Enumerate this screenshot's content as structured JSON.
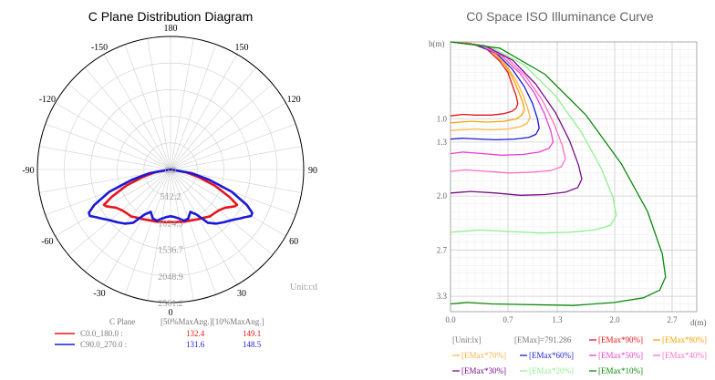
{
  "chart_data": [
    {
      "type": "polar",
      "title": "C Plane Distribution Diagram",
      "angle_labels": [
        "180",
        "150",
        "120",
        "90",
        "60",
        "30",
        "0",
        "-30",
        "-60",
        "-90",
        "-120",
        "-150"
      ],
      "angle_ticks": [
        180,
        150,
        120,
        90,
        60,
        30,
        0,
        -30,
        -60,
        -90,
        -120,
        -150
      ],
      "radial_labels": [
        "0.0",
        "512.2",
        "1024.5",
        "1536.7",
        "2048.9",
        "2561.2"
      ],
      "radial_values": [
        0,
        512.2,
        1024.5,
        1536.7,
        2048.9,
        2561.2
      ],
      "rmax": 2561.2,
      "unit_label": "Unit:cd",
      "legend": {
        "header_plane": "C Plane",
        "header_angles": "[50%MaxAng.][10%MaxAng.]",
        "rows": [
          {
            "name": "C0.0_180.0 :",
            "a50": "132.4",
            "a10": "149.1",
            "color": "#e8141b"
          },
          {
            "name": "C90.0_270.0 :",
            "a50": "131.6",
            "a10": "148.5",
            "color": "#1a1ad6"
          }
        ]
      },
      "series": [
        {
          "name": "C0.0_180.0",
          "color": "#e8141b",
          "angles": [
            -180,
            -150,
            -120,
            -100,
            -90,
            -80,
            -75,
            -70,
            -65,
            -62,
            -60,
            -55,
            -50,
            -45,
            -40,
            -35,
            -30,
            -25,
            -20,
            -15,
            -10,
            -5,
            0,
            5,
            10,
            15,
            20,
            25,
            30,
            35,
            40,
            45,
            50,
            55,
            60,
            62,
            65,
            70,
            75,
            80,
            90,
            100,
            120,
            150,
            180
          ],
          "values": [
            0,
            0,
            0,
            5,
            10,
            300,
            550,
            900,
            1250,
            1450,
            1420,
            1280,
            1220,
            1190,
            1180,
            1130,
            1100,
            1070,
            1050,
            1040,
            1020,
            1020,
            1010,
            1020,
            1020,
            1040,
            1050,
            1070,
            1100,
            1130,
            1180,
            1190,
            1220,
            1280,
            1420,
            1450,
            1250,
            900,
            550,
            300,
            10,
            5,
            0,
            0,
            0
          ]
        },
        {
          "name": "C90.0_270.0",
          "color": "#1a1ad6",
          "angles": [
            -180,
            -150,
            -120,
            -100,
            -90,
            -80,
            -75,
            -70,
            -65,
            -62,
            -60,
            -57,
            -55,
            -50,
            -45,
            -40,
            -35,
            -30,
            -25,
            -20,
            -15,
            -10,
            -5,
            0,
            5,
            10,
            15,
            20,
            25,
            30,
            35,
            40,
            45,
            50,
            55,
            57,
            60,
            62,
            65,
            70,
            75,
            80,
            90,
            100,
            120,
            150,
            180
          ],
          "values": [
            0,
            0,
            0,
            5,
            10,
            420,
            780,
            1250,
            1620,
            1780,
            1790,
            1690,
            1640,
            1520,
            1440,
            1360,
            1250,
            1000,
            900,
            1000,
            1020,
            960,
            920,
            900,
            920,
            960,
            1020,
            1000,
            900,
            1000,
            1250,
            1360,
            1440,
            1520,
            1640,
            1690,
            1790,
            1780,
            1620,
            1250,
            780,
            420,
            10,
            5,
            0,
            0,
            0
          ]
        }
      ]
    },
    {
      "type": "line",
      "title": "C0 Space ISO Illuminance Curve",
      "ylabel": "h(m)",
      "xlabel": "d(m)",
      "x_ticks": [
        "0.0",
        "0.7",
        "1.3",
        "2.0",
        "2.7"
      ],
      "x_tick_values": [
        0,
        0.7,
        1.3,
        2.0,
        2.7
      ],
      "y_ticks": [
        "1.0",
        "1.3",
        "2.0",
        "2.7",
        "3.3"
      ],
      "y_tick_values": [
        1.0,
        1.3,
        2.0,
        2.7,
        3.3
      ],
      "xlim": [
        0,
        3.0
      ],
      "ylim": [
        0,
        3.5
      ],
      "legend": {
        "unit": "[Unit:lx]",
        "emax": "[EMax]=791.286"
      },
      "series": [
        {
          "name": "[EMax*90%]",
          "color": "#e8141b",
          "x": [
            0,
            0.25,
            0.45,
            0.6,
            0.7,
            0.75,
            0.8,
            0.82,
            0.8,
            0.75,
            0.65,
            0.5,
            0.3,
            0.15,
            0.08,
            0
          ],
          "y": [
            0,
            0.02,
            0.1,
            0.25,
            0.4,
            0.55,
            0.7,
            0.8,
            0.86,
            0.9,
            0.93,
            0.95,
            0.95,
            0.94,
            0.95,
            0.96
          ]
        },
        {
          "name": "[EMax*80%]",
          "color": "#f5a300",
          "x": [
            0,
            0.3,
            0.5,
            0.65,
            0.75,
            0.82,
            0.88,
            0.9,
            0.87,
            0.8,
            0.65,
            0.45,
            0.25,
            0.12,
            0
          ],
          "y": [
            0,
            0.03,
            0.12,
            0.28,
            0.45,
            0.62,
            0.78,
            0.88,
            0.95,
            1.0,
            1.03,
            1.04,
            1.03,
            1.04,
            1.05
          ]
        },
        {
          "name": "[EMax*70%]",
          "color": "#ffb347",
          "x": [
            0,
            0.3,
            0.52,
            0.68,
            0.8,
            0.88,
            0.94,
            0.97,
            0.93,
            0.85,
            0.7,
            0.5,
            0.3,
            0.12,
            0
          ],
          "y": [
            0,
            0.03,
            0.13,
            0.3,
            0.5,
            0.68,
            0.86,
            0.98,
            1.06,
            1.1,
            1.13,
            1.14,
            1.13,
            1.14,
            1.15
          ]
        },
        {
          "name": "[EMax*60%]",
          "color": "#1a1ad6",
          "x": [
            0,
            0.32,
            0.56,
            0.75,
            0.9,
            1.0,
            1.06,
            1.08,
            1.04,
            0.95,
            0.78,
            0.55,
            0.35,
            0.15,
            0
          ],
          "y": [
            0,
            0.04,
            0.15,
            0.35,
            0.58,
            0.8,
            1.0,
            1.12,
            1.2,
            1.24,
            1.26,
            1.27,
            1.26,
            1.25,
            1.26
          ]
        },
        {
          "name": "[EMax*50%]",
          "color": "#e83fd1",
          "x": [
            0,
            0.35,
            0.62,
            0.84,
            1.02,
            1.14,
            1.22,
            1.25,
            1.2,
            1.08,
            0.88,
            0.62,
            0.4,
            0.15,
            0
          ],
          "y": [
            0,
            0.04,
            0.18,
            0.4,
            0.66,
            0.92,
            1.15,
            1.3,
            1.38,
            1.43,
            1.46,
            1.47,
            1.45,
            1.43,
            1.45
          ]
        },
        {
          "name": "[EMax*40%]",
          "color": "#ff6ec7",
          "x": [
            0,
            0.38,
            0.68,
            0.92,
            1.12,
            1.26,
            1.36,
            1.4,
            1.35,
            1.22,
            1.0,
            0.72,
            0.45,
            0.18,
            0
          ],
          "y": [
            0,
            0.05,
            0.2,
            0.45,
            0.76,
            1.06,
            1.34,
            1.52,
            1.62,
            1.67,
            1.69,
            1.7,
            1.68,
            1.66,
            1.68
          ]
        },
        {
          "name": "[EMax*30%]",
          "color": "#7a0a8a",
          "x": [
            0,
            0.42,
            0.76,
            1.04,
            1.28,
            1.45,
            1.56,
            1.6,
            1.55,
            1.4,
            1.15,
            0.85,
            0.55,
            0.25,
            0
          ],
          "y": [
            0,
            0.05,
            0.24,
            0.55,
            0.92,
            1.28,
            1.6,
            1.78,
            1.89,
            1.95,
            1.98,
            1.99,
            1.96,
            1.94,
            1.96
          ]
        },
        {
          "name": "[EMax*20%]",
          "color": "#8ff08f",
          "x": [
            0,
            0.48,
            0.9,
            1.28,
            1.6,
            1.84,
            1.98,
            2.02,
            1.95,
            1.75,
            1.45,
            1.1,
            0.7,
            0.35,
            0
          ],
          "y": [
            0,
            0.06,
            0.3,
            0.7,
            1.18,
            1.65,
            2.02,
            2.25,
            2.38,
            2.44,
            2.47,
            2.48,
            2.46,
            2.44,
            2.47
          ]
        },
        {
          "name": "[EMax*10%]",
          "color": "#0a8a0a",
          "x": [
            0,
            0.6,
            1.15,
            1.65,
            2.08,
            2.4,
            2.58,
            2.62,
            2.55,
            2.35,
            2.0,
            1.5,
            1.0,
            0.5,
            0.2,
            0
          ],
          "y": [
            0,
            0.08,
            0.42,
            0.95,
            1.58,
            2.2,
            2.75,
            3.05,
            3.22,
            3.32,
            3.38,
            3.42,
            3.41,
            3.4,
            3.38,
            3.4
          ]
        }
      ]
    }
  ]
}
